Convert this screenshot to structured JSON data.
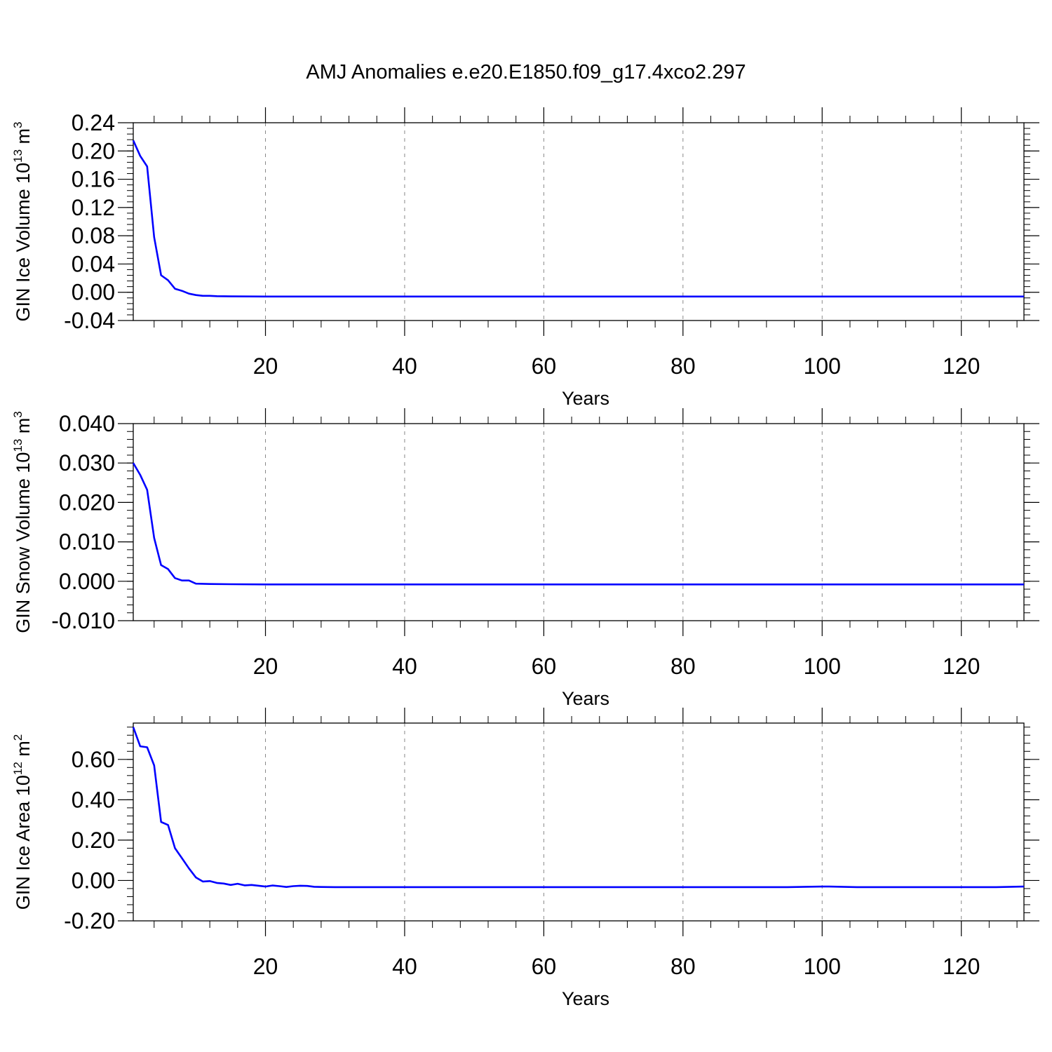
{
  "figure": {
    "title": "AMJ Anomalies e.e20.E1850.f09_g17.4xco2.297",
    "line_color": "#0000ff"
  },
  "chart_data": [
    {
      "type": "line",
      "ylabel": "GIN Ice Volume 10",
      "ylabel_exp": "13",
      "ylabel_unit": " m",
      "ylabel_unit_exp": "3",
      "xlabel": "Years",
      "xlim": [
        1,
        129
      ],
      "ylim": [
        -0.04,
        0.24
      ],
      "xticks": [
        20,
        40,
        60,
        80,
        100,
        120
      ],
      "xtick_labels": [
        "20",
        "40",
        "60",
        "80",
        "100",
        "120"
      ],
      "yticks": [
        -0.04,
        0.0,
        0.04,
        0.08,
        0.12,
        0.16,
        0.2,
        0.24
      ],
      "ytick_labels": [
        "-0.04",
        "0.00",
        "0.04",
        "0.08",
        "0.12",
        "0.16",
        "0.20",
        "0.24"
      ],
      "grid": "vertical dashed",
      "series": [
        {
          "x": [
            1,
            2,
            3,
            4,
            5,
            6,
            7,
            8,
            9,
            10,
            11,
            12,
            13,
            15,
            20,
            30,
            40,
            60,
            80,
            100,
            120,
            129
          ],
          "y": [
            0.215,
            0.193,
            0.178,
            0.078,
            0.024,
            0.017,
            0.005,
            0.002,
            -0.002,
            -0.004,
            -0.005,
            -0.005,
            -0.0055,
            -0.0058,
            -0.006,
            -0.006,
            -0.006,
            -0.006,
            -0.006,
            -0.006,
            -0.006,
            -0.006
          ]
        }
      ]
    },
    {
      "type": "line",
      "ylabel": "GIN Snow Volume 10",
      "ylabel_exp": "13",
      "ylabel_unit": " m",
      "ylabel_unit_exp": "3",
      "xlabel": "Years",
      "xlim": [
        1,
        129
      ],
      "ylim": [
        -0.01,
        0.04
      ],
      "xticks": [
        20,
        40,
        60,
        80,
        100,
        120
      ],
      "xtick_labels": [
        "20",
        "40",
        "60",
        "80",
        "100",
        "120"
      ],
      "yticks": [
        -0.01,
        0.0,
        0.01,
        0.02,
        0.03,
        0.04
      ],
      "ytick_labels": [
        "-0.010",
        "0.000",
        "0.010",
        "0.020",
        "0.030",
        "0.040"
      ],
      "grid": "vertical dashed",
      "series": [
        {
          "x": [
            1,
            2,
            3,
            4,
            5,
            6,
            7,
            8,
            9,
            10,
            12,
            15,
            20,
            30,
            40,
            60,
            80,
            100,
            120,
            129
          ],
          "y": [
            0.03,
            0.027,
            0.0232,
            0.011,
            0.0041,
            0.0031,
            0.0008,
            0.0002,
            0.0002,
            -0.0006,
            -0.0007,
            -0.00075,
            -0.0008,
            -0.0008,
            -0.0008,
            -0.0008,
            -0.0008,
            -0.0008,
            -0.0008,
            -0.0008
          ]
        }
      ]
    },
    {
      "type": "line",
      "ylabel": "GIN Ice Area 10",
      "ylabel_exp": "12",
      "ylabel_unit": " m",
      "ylabel_unit_exp": "2",
      "xlabel": "Years",
      "xlim": [
        1,
        129
      ],
      "ylim": [
        -0.2,
        0.78
      ],
      "xticks": [
        20,
        40,
        60,
        80,
        100,
        120
      ],
      "xtick_labels": [
        "20",
        "40",
        "60",
        "80",
        "100",
        "120"
      ],
      "yticks": [
        -0.2,
        0.0,
        0.2,
        0.4,
        0.6
      ],
      "ytick_labels": [
        "-0.20",
        "0.00",
        "0.20",
        "0.40",
        "0.60"
      ],
      "grid": "vertical dashed",
      "series": [
        {
          "x": [
            1,
            2,
            3,
            4,
            5,
            6,
            7,
            8,
            9,
            10,
            11,
            12,
            13,
            14,
            15,
            16,
            17,
            18,
            19,
            20,
            21,
            22,
            23,
            24,
            25,
            26,
            27,
            28,
            30,
            35,
            40,
            45,
            50,
            55,
            60,
            65,
            70,
            75,
            80,
            85,
            90,
            95,
            100,
            101,
            105,
            110,
            115,
            120,
            125,
            129
          ],
          "y": [
            0.76,
            0.665,
            0.66,
            0.57,
            0.29,
            0.275,
            0.16,
            0.11,
            0.06,
            0.015,
            -0.005,
            -0.003,
            -0.012,
            -0.015,
            -0.022,
            -0.016,
            -0.024,
            -0.022,
            -0.026,
            -0.03,
            -0.025,
            -0.028,
            -0.032,
            -0.028,
            -0.026,
            -0.027,
            -0.031,
            -0.032,
            -0.033,
            -0.033,
            -0.033,
            -0.033,
            -0.033,
            -0.033,
            -0.033,
            -0.033,
            -0.033,
            -0.033,
            -0.033,
            -0.033,
            -0.033,
            -0.033,
            -0.03,
            -0.03,
            -0.033,
            -0.033,
            -0.033,
            -0.033,
            -0.033,
            -0.03
          ]
        }
      ]
    }
  ]
}
